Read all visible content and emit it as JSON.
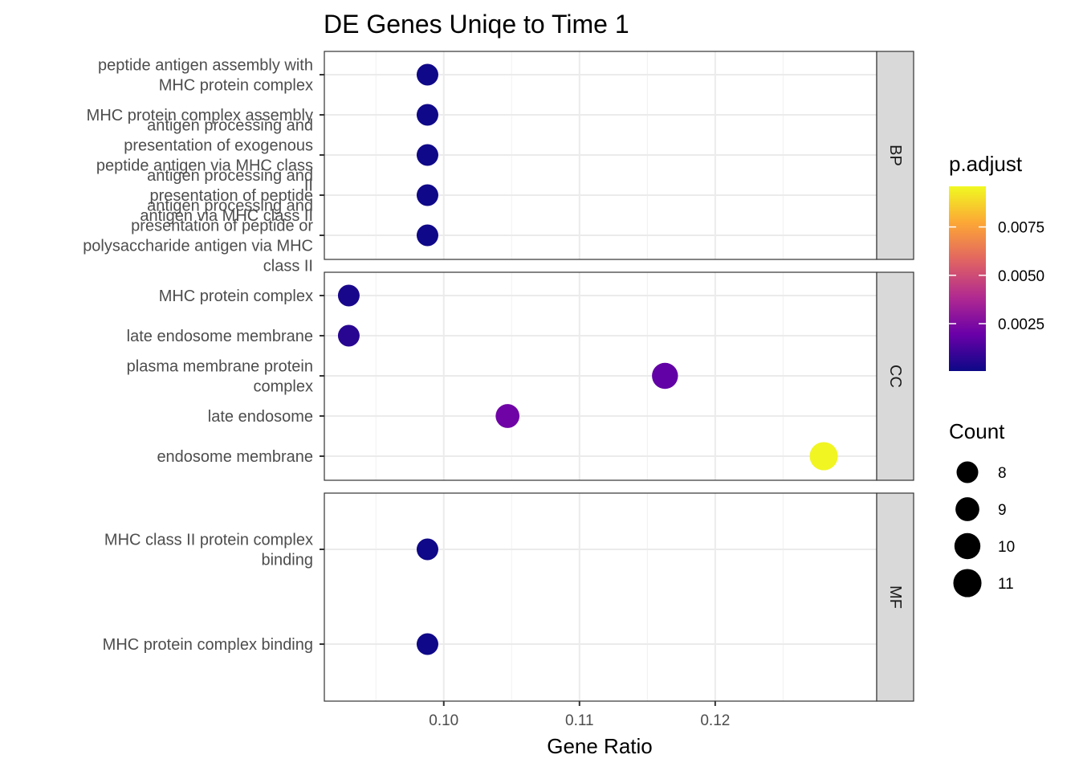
{
  "chart_data": {
    "type": "scatter",
    "title": "DE Genes Uniqe to Time 1",
    "xlabel": "Gene Ratio",
    "ylabel": "",
    "xlim": [
      0.0912,
      0.1319
    ],
    "x_ticks": [
      0.1,
      0.11,
      0.12
    ],
    "x_tick_labels": [
      "0.10",
      "0.11",
      "0.12"
    ],
    "grid": true,
    "facets": [
      {
        "name": "BP",
        "points": [
          {
            "label": [
              "peptide antigen assembly with",
              "MHC protein complex"
            ],
            "gene_ratio": 0.0988,
            "p_adjust": 0.0001,
            "count": 8
          },
          {
            "label": [
              "MHC protein complex assembly"
            ],
            "gene_ratio": 0.0988,
            "p_adjust": 0.0001,
            "count": 8
          },
          {
            "label": [
              "antigen processing and",
              "presentation of exogenous",
              "peptide antigen via MHC class",
              "II"
            ],
            "gene_ratio": 0.0988,
            "p_adjust": 0.0001,
            "count": 8
          },
          {
            "label": [
              "antigen processing and",
              "presentation of peptide",
              "antigen via MHC class II"
            ],
            "gene_ratio": 0.0988,
            "p_adjust": 0.0001,
            "count": 8
          },
          {
            "label": [
              "antigen processing and",
              "presentation of peptide or",
              "polysaccharide antigen via MHC",
              "class II"
            ],
            "gene_ratio": 0.0988,
            "p_adjust": 0.0001,
            "count": 8
          }
        ]
      },
      {
        "name": "CC",
        "points": [
          {
            "label": [
              "MHC protein complex"
            ],
            "gene_ratio": 0.093,
            "p_adjust": 0.0003,
            "count": 8
          },
          {
            "label": [
              "late endosome membrane"
            ],
            "gene_ratio": 0.093,
            "p_adjust": 0.0006,
            "count": 8
          },
          {
            "label": [
              "plasma membrane protein",
              "complex"
            ],
            "gene_ratio": 0.1163,
            "p_adjust": 0.0018,
            "count": 10
          },
          {
            "label": [
              "late endosome"
            ],
            "gene_ratio": 0.1047,
            "p_adjust": 0.0021,
            "count": 9
          },
          {
            "label": [
              "endosome membrane"
            ],
            "gene_ratio": 0.128,
            "p_adjust": 0.0095,
            "count": 11
          }
        ]
      },
      {
        "name": "MF",
        "points": [
          {
            "label": [
              "MHC class II protein complex",
              "binding"
            ],
            "gene_ratio": 0.0988,
            "p_adjust": 0.0001,
            "count": 8
          },
          {
            "label": [
              "MHC protein complex binding"
            ],
            "gene_ratio": 0.0988,
            "p_adjust": 0.0001,
            "count": 8
          }
        ]
      }
    ],
    "color_legend": {
      "title": "p.adjust",
      "range": [
        5e-05,
        0.0096
      ],
      "ticks": [
        0.0025,
        0.005,
        0.0075
      ],
      "tick_labels": [
        "0.0025",
        "0.0050",
        "0.0075"
      ],
      "colors": [
        "#0d0887",
        "#6a00a8",
        "#b12a90",
        "#e16462",
        "#fca636",
        "#f0f921"
      ]
    },
    "size_legend": {
      "title": "Count",
      "values": [
        8,
        9,
        10,
        11
      ],
      "labels": [
        "8",
        "9",
        "10",
        "11"
      ]
    },
    "legend_position": "right"
  }
}
